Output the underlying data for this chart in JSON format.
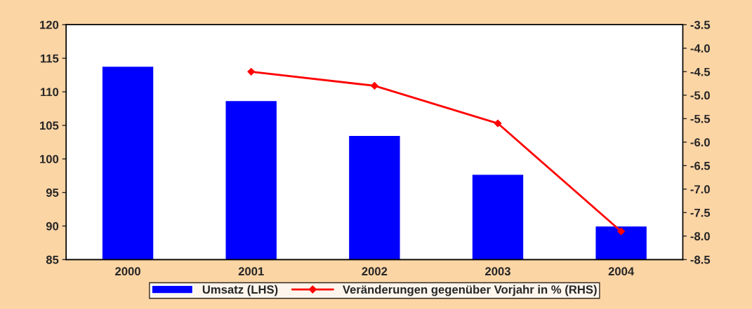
{
  "chart_data": {
    "type": "bar",
    "categories": [
      "2000",
      "2001",
      "2002",
      "2003",
      "2004"
    ],
    "series": [
      {
        "name": "Umsatz (LHS)",
        "color": "#0000ff",
        "values": [
          113.8,
          108.7,
          103.5,
          97.7,
          90.0
        ]
      },
      {
        "name": "Veränderungen gegenüber Vorjahr in % (RHS)",
        "type": "line",
        "axis": "y2",
        "color": "#ff0000",
        "marker": "diamond",
        "values": [
          null,
          -4.5,
          -4.8,
          -5.6,
          -7.9
        ]
      }
    ],
    "ylim": [
      85,
      120
    ],
    "yticks": [
      85,
      90,
      95,
      100,
      105,
      110,
      115,
      120
    ],
    "y2lim": [
      -8.5,
      -3.5
    ],
    "y2ticks": [
      {
        "value": -8.5,
        "label": "-8.5"
      },
      {
        "value": -8,
        "label": "-8.0"
      },
      {
        "value": -7.5,
        "label": "-7.5"
      },
      {
        "value": -7,
        "label": "-7.0"
      },
      {
        "value": -6.5,
        "label": "-6.5"
      },
      {
        "value": -6,
        "label": "-6.0"
      },
      {
        "value": -5.5,
        "label": "-5.5"
      },
      {
        "value": -5,
        "label": "-5.0"
      },
      {
        "value": -4.5,
        "label": "-4.5"
      },
      {
        "value": -4,
        "label": "-4.0"
      },
      {
        "value": -3.5,
        "label": "-3.5"
      }
    ],
    "legend": "bottom",
    "grid": false
  }
}
